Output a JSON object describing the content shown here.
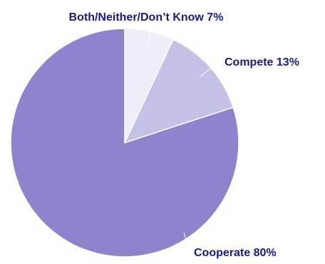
{
  "chart_data": {
    "type": "pie",
    "title": "",
    "slices": [
      {
        "label": "Both/Neither/Don’t Know 7%",
        "value": 7,
        "color": "#EEEDF8"
      },
      {
        "label": "Compete 13%",
        "value": 13,
        "color": "#C5C0E6"
      },
      {
        "label": "Cooperate 80%",
        "value": 80,
        "color": "#8E83CC"
      }
    ],
    "start": "12 o'clock",
    "direction": "clockwise",
    "label_color": "#1A1A8C",
    "leader_line_color": "#FFFFFF",
    "edge_color": "#FFFFFF",
    "legend": "none",
    "data_labels": "outside with leader lines"
  }
}
